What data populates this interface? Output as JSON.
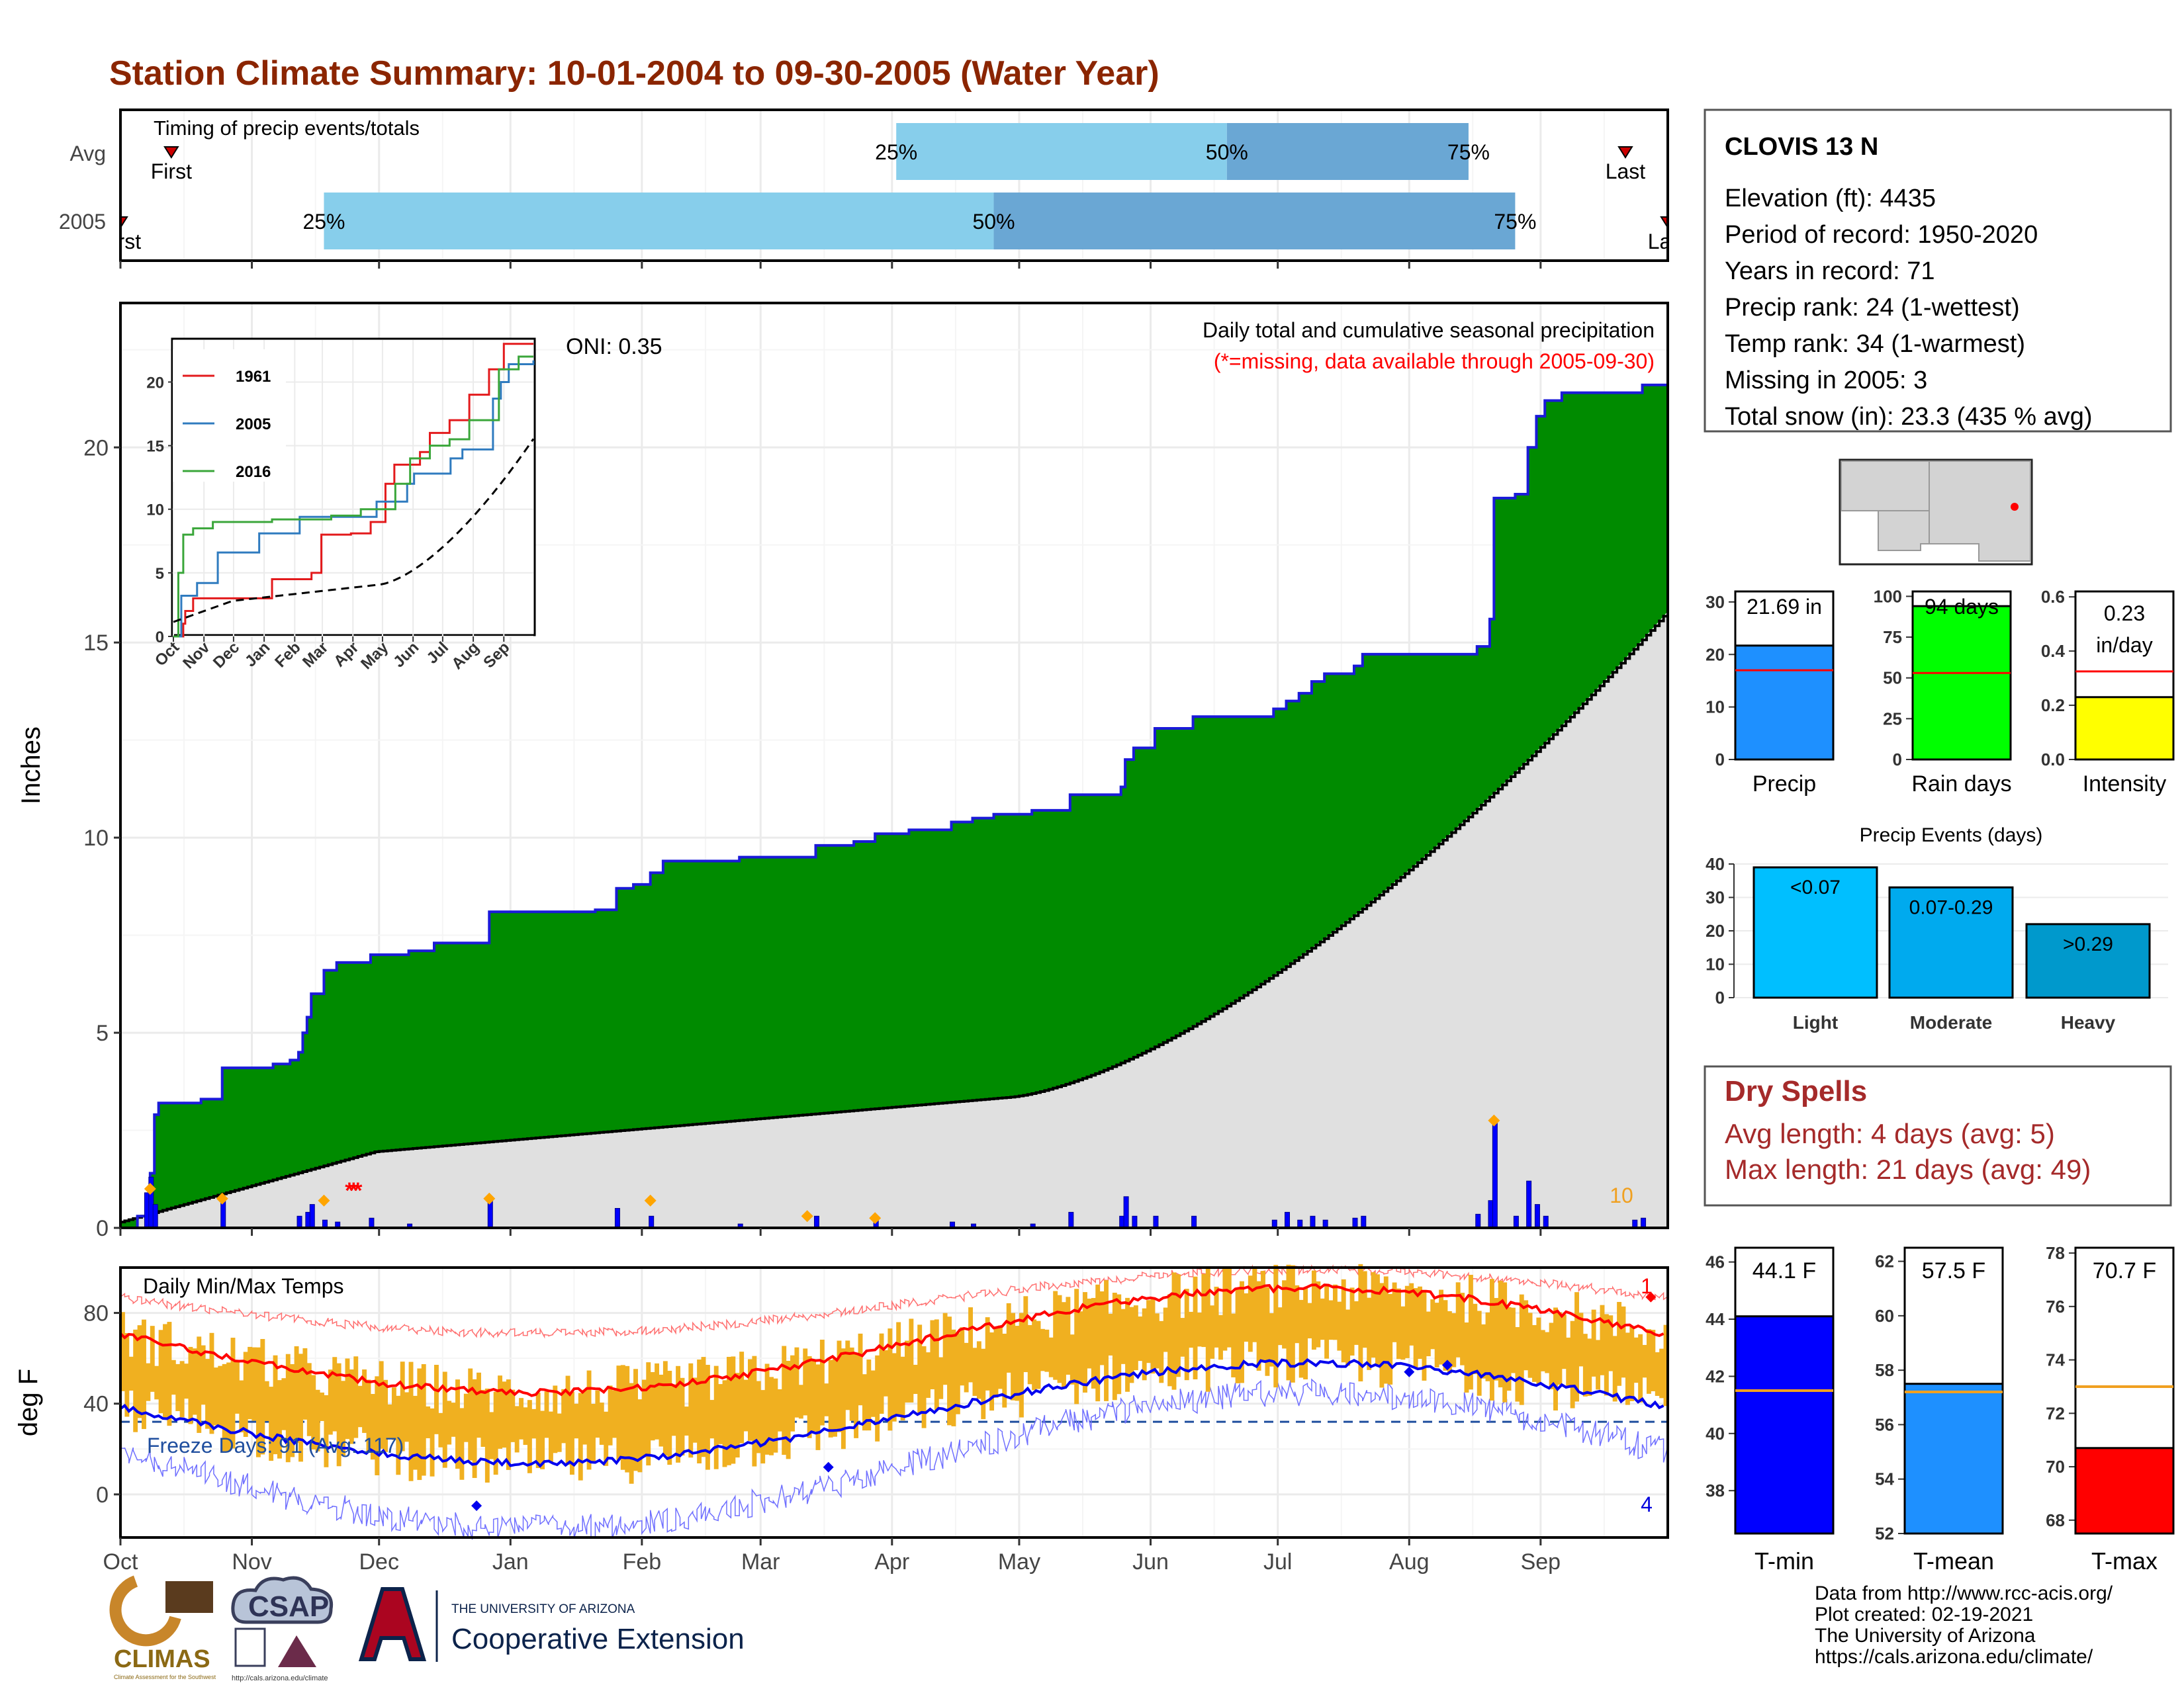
{
  "title": "Station Climate Summary: 10-01-2004 to 09-30-2005 (Water Year)",
  "colors": {
    "title": "#8b2500",
    "green": "#008b00",
    "blue_line": "#1a1ad9",
    "gray_fill": "#e0e0e0",
    "light_blue": "#87ceeb",
    "mid_blue": "#6aa7d4",
    "orange": "#f0b020",
    "red": "#ff0000",
    "dry_spell": "#a52a2a"
  },
  "timing": {
    "label": "Timing of precip events/totals",
    "rows": [
      {
        "name": "Avg",
        "first_label": "First",
        "last_label": "Last",
        "first_day": 12,
        "last_day": 355,
        "p25_day": 183,
        "p50_day": 261,
        "p75_day": 318
      },
      {
        "name": "2005",
        "first_label": "First",
        "last_label": "Last",
        "first_day": 0,
        "last_day": 365,
        "p25_day": 48,
        "p50_day": 206,
        "p75_day": 329
      }
    ],
    "pct_labels": [
      "25%",
      "50%",
      "75%"
    ]
  },
  "precip_panel": {
    "ylabel": "Inches",
    "oni": "ONI: 0.35",
    "note1": "Daily total and cumulative seasonal precipitation",
    "note2": "(*=missing, data available through 2005-09-30)",
    "yticks": [
      0,
      5,
      10,
      15,
      20
    ],
    "count_label": "10"
  },
  "inset": {
    "yticks": [
      0,
      5,
      10,
      15,
      20
    ],
    "months": [
      "Oct",
      "Nov",
      "Dec",
      "Jan",
      "Feb",
      "Mar",
      "Apr",
      "May",
      "Jun",
      "Jul",
      "Aug",
      "Sep"
    ],
    "legend": [
      {
        "name": "1961",
        "color": "#e31a1c"
      },
      {
        "name": "2005",
        "color": "#2f7bbf"
      },
      {
        "name": "2016",
        "color": "#3aa63a"
      }
    ]
  },
  "temp_panel": {
    "ylabel": "deg F",
    "label": "Daily Min/Max Temps",
    "freeze": "Freeze Days: 91 (Avg: 117)",
    "yticks": [
      0,
      40,
      80
    ],
    "record_high_count": "1",
    "record_low_count": "4"
  },
  "months": [
    "Oct",
    "Nov",
    "Dec",
    "Jan",
    "Feb",
    "Mar",
    "Apr",
    "May",
    "Jun",
    "Jul",
    "Aug",
    "Sep"
  ],
  "station": {
    "name": "CLOVIS 13 N",
    "lines": [
      "Elevation (ft): 4435",
      "Period of record: 1950-2020",
      "Years in record: 71",
      "Precip rank: 24 (1-wettest)",
      "Temp rank: 34 (1-warmest)",
      "Missing in 2005: 3",
      "Total snow (in): 23.3 (435 % avg)"
    ]
  },
  "mini_bars": [
    {
      "label": "Precip",
      "value_label": "21.69 in",
      "value": 21.69,
      "avg": 17,
      "max": 32,
      "ticks": [
        0,
        10,
        20,
        30
      ],
      "color": "#1e90ff"
    },
    {
      "label": "Rain days",
      "value_label": "94 days",
      "value": 94,
      "avg": 53,
      "max": 103,
      "ticks": [
        0,
        25,
        50,
        75,
        100
      ],
      "color": "#00ff00"
    },
    {
      "label": "Intensity",
      "value_label1": "0.23",
      "value_label2": "in/day",
      "value": 0.23,
      "avg": 0.325,
      "max": 0.62,
      "ticks": [
        "0.0",
        "0.2",
        "0.4",
        "0.6"
      ],
      "color": "#ffff00"
    }
  ],
  "precip_events": {
    "title": "Precip Events (days)",
    "ticks": [
      0,
      10,
      20,
      30,
      40
    ],
    "bars": [
      {
        "label": "Light",
        "range": "<0.07",
        "value": 39,
        "color": "#00bfff"
      },
      {
        "label": "Moderate",
        "range": "0.07-0.29",
        "value": 33,
        "color": "#00aaee"
      },
      {
        "label": "Heavy",
        "range": ">0.29",
        "value": 22,
        "color": "#0099cc"
      }
    ]
  },
  "dry_spells": {
    "title": "Dry Spells",
    "avg": "Avg length: 4 days (avg: 5)",
    "max": "Max length: 21 days (avg: 49)"
  },
  "temp_bars": [
    {
      "label": "T-min",
      "value_label": "44.1 F",
      "value": 44.1,
      "avg": 41.5,
      "min": 36.5,
      "max": 46.5,
      "ticks": [
        38,
        40,
        42,
        44,
        46
      ],
      "color": "#0000ff"
    },
    {
      "label": "T-mean",
      "value_label": "57.5 F",
      "value": 57.5,
      "avg": 57.2,
      "min": 52,
      "max": 62.5,
      "ticks": [
        52,
        54,
        56,
        58,
        60,
        62
      ],
      "color": "#1e90ff"
    },
    {
      "label": "T-max",
      "value_label": "70.7 F",
      "value": 70.7,
      "avg": 73,
      "min": 67.5,
      "max": 78.2,
      "ticks": [
        68,
        70,
        72,
        74,
        76,
        78
      ],
      "color": "#ff0000"
    }
  ],
  "footer": {
    "lines": [
      "Data from http://www.rcc-acis.org/",
      "Plot created: 02-19-2021",
      "The University of Arizona",
      "https://cals.arizona.edu/climate/"
    ],
    "climas": "CLIMAS",
    "climas_sub": "Climate Assessment for the Southwest",
    "csap": "CSAP",
    "csap_url": "http://cals.arizona.edu/climate",
    "ua_small": "THE UNIVERSITY OF ARIZONA",
    "ua_big": "Cooperative Extension"
  }
}
